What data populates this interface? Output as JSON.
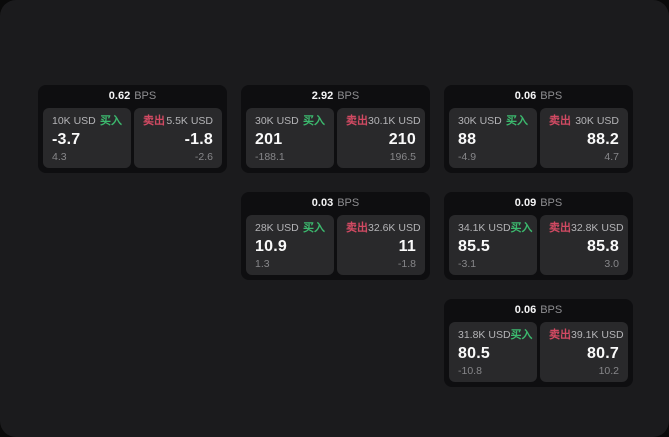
{
  "labels": {
    "bps_unit": "BPS",
    "buy": "买入",
    "sell": "卖出"
  },
  "colors": {
    "container_bg": "#1b1b1d",
    "card_bg": "#0e0e10",
    "panel_bg": "#29292b",
    "buy_green": "#3cb96e",
    "sell_red": "#d24a63"
  },
  "cards": [
    {
      "bps": "0.62",
      "buy": {
        "size": "10K USD",
        "value": "-3.7",
        "sub": "4.3"
      },
      "sell": {
        "size": "5.5K USD",
        "value": "-1.8",
        "sub": "-2.6"
      }
    },
    {
      "bps": "2.92",
      "buy": {
        "size": "30K USD",
        "value": "201",
        "sub": "-188.1"
      },
      "sell": {
        "size": "30.1K USD",
        "value": "210",
        "sub": "196.5"
      }
    },
    {
      "bps": "0.06",
      "buy": {
        "size": "30K USD",
        "value": "88",
        "sub": "-4.9"
      },
      "sell": {
        "size": "30K USD",
        "value": "88.2",
        "sub": "4.7"
      }
    },
    {
      "bps": "0.03",
      "buy": {
        "size": "28K USD",
        "value": "10.9",
        "sub": "1.3"
      },
      "sell": {
        "size": "32.6K USD",
        "value": "11",
        "sub": "-1.8"
      }
    },
    {
      "bps": "0.09",
      "buy": {
        "size": "34.1K USD",
        "value": "85.5",
        "sub": "-3.1"
      },
      "sell": {
        "size": "32.8K USD",
        "value": "85.8",
        "sub": "3.0"
      }
    },
    {
      "bps": "0.06",
      "buy": {
        "size": "31.8K USD",
        "value": "80.5",
        "sub": "-10.8"
      },
      "sell": {
        "size": "39.1K USD",
        "value": "80.7",
        "sub": "10.2"
      }
    }
  ]
}
